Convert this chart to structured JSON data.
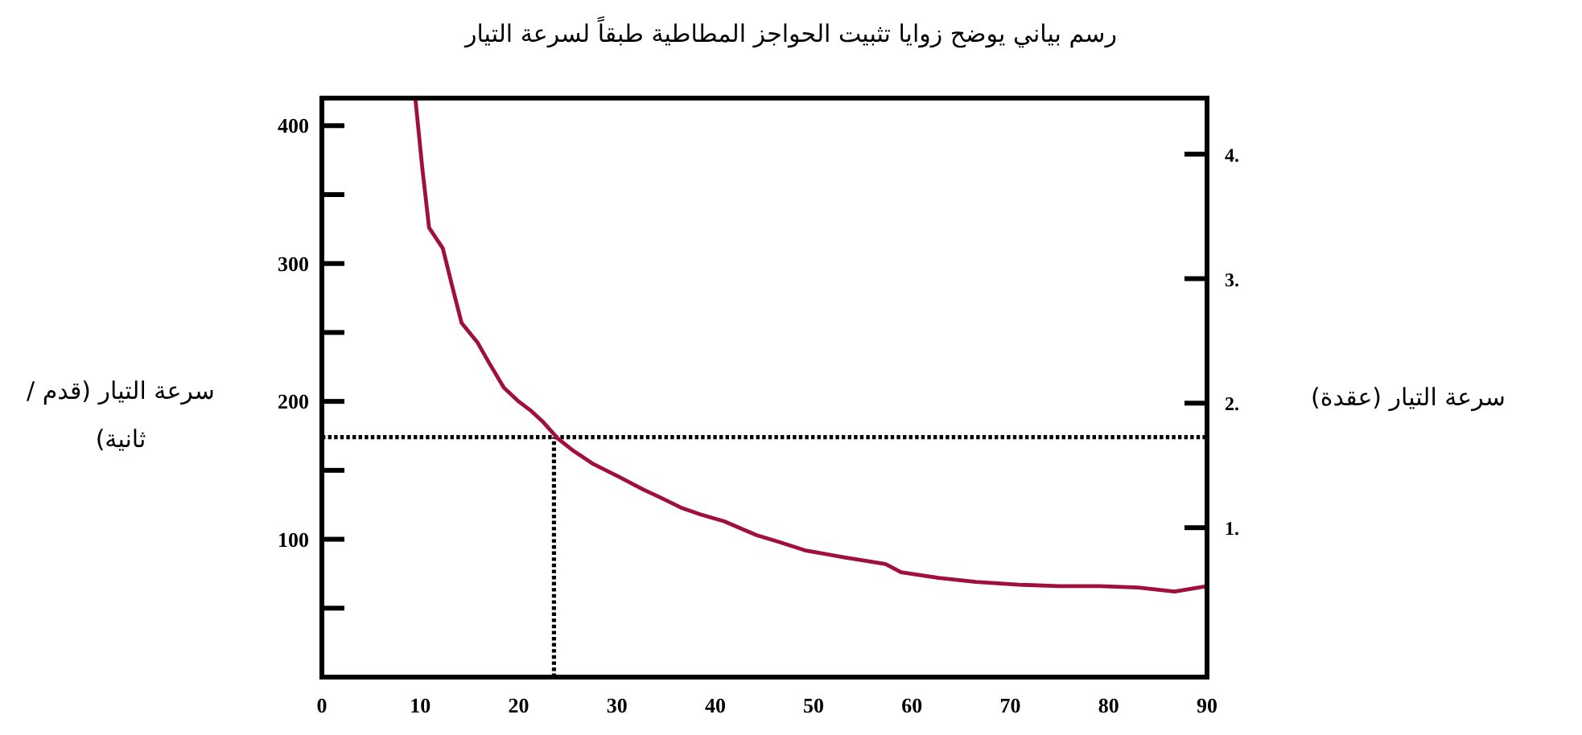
{
  "chart_data": {
    "type": "line",
    "title": "رسم بياني يوضح زوايا تثبيت الحواجز المطاطية طبقاً لسرعة التيار",
    "ylabel": "سرعة التيار (قدم / ثانية)",
    "y2label": "سرعة التيار (عقدة)",
    "x": [
      9.5,
      10.2,
      10.9,
      12.3,
      13.2,
      14.2,
      15.8,
      17.0,
      18.5,
      20.0,
      21.3,
      22.5,
      24.0,
      25.6,
      27.5,
      30.0,
      32.7,
      34.5,
      36.5,
      38.5,
      40.9,
      44.2,
      46.5,
      49.1,
      53.0,
      57.3,
      58.9,
      62.7,
      66.5,
      70.9,
      75.0,
      79.1,
      83.0,
      86.7,
      90.0
    ],
    "series": [
      {
        "color": "#a0103a",
        "values": [
          420,
          370,
          326,
          311,
          285,
          257,
          243,
          228,
          210,
          200,
          193,
          185,
          173,
          164,
          155,
          146,
          136,
          130,
          123,
          118,
          113,
          103,
          98,
          92,
          87,
          82,
          76,
          72,
          69,
          67,
          66,
          66,
          65,
          62,
          66
        ]
      }
    ],
    "xlim": [
      0,
      90
    ],
    "xticks": [
      0,
      10,
      20,
      30,
      40,
      50,
      60,
      70,
      80,
      90
    ],
    "ylim": [
      0,
      420
    ],
    "yticks": [
      {
        "value": 50,
        "label": null
      },
      100,
      {
        "value": 150,
        "label": null
      },
      200,
      {
        "value": 250,
        "label": null
      },
      300,
      {
        "value": 350,
        "label": null
      },
      400
    ],
    "y2lim": [
      -0.2,
      4.45
    ],
    "y2ticks": [
      {
        "value": 1,
        "label": "1."
      },
      {
        "value": 2,
        "label": "2."
      },
      {
        "value": 3,
        "label": "3."
      },
      {
        "value": 4,
        "label": "4."
      }
    ],
    "ref_lines": [
      {
        "axis": "y",
        "value": 174,
        "line_style": "dotted"
      },
      {
        "axis": "x",
        "value": 23.6,
        "line_style": "dotted"
      }
    ]
  }
}
